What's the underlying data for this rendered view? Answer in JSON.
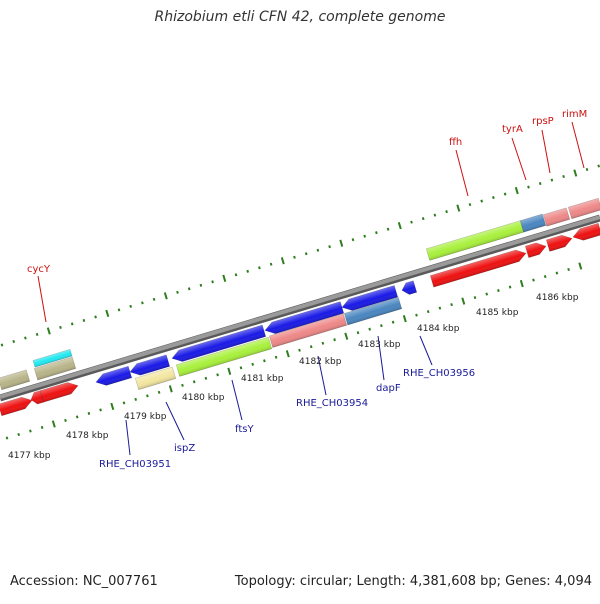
{
  "title": "Rhizobium etli CFN 42, complete genome",
  "footer": {
    "accession": "Accession: NC_007761",
    "summary": "Topology: circular; Length: 4,381,608 bp; Genes: 4,094"
  },
  "colors": {
    "backbone": "#8a8a8a",
    "tick": "#2e7d1e",
    "label_top": "#cc1111",
    "label_bottom": "#1a1a99",
    "gene_red": "#ee1111",
    "gene_blue": "#1a1ae6",
    "gene_lime": "#a8f03c",
    "gene_salmon": "#ee8888",
    "gene_steel": "#4a86c0",
    "gene_khaki": "#b8b488",
    "gene_cyan": "#22e8f0",
    "gene_cream": "#f3e6a0"
  },
  "kbp_labels": [
    "4177 kbp",
    "4178 kbp",
    "4179 kbp",
    "4180 kbp",
    "4181 kbp",
    "4182 kbp",
    "4183 kbp",
    "4184 kbp",
    "4185 kbp",
    "4186 kbp"
  ],
  "top_gene_labels": [
    "cycY",
    "ffh",
    "tyrA",
    "rpsP",
    "rimM"
  ],
  "bottom_gene_labels": [
    "RHE_CH03951",
    "ispZ",
    "ftsY",
    "RHE_CH03954",
    "dapF",
    "RHE_CH03956"
  ]
}
